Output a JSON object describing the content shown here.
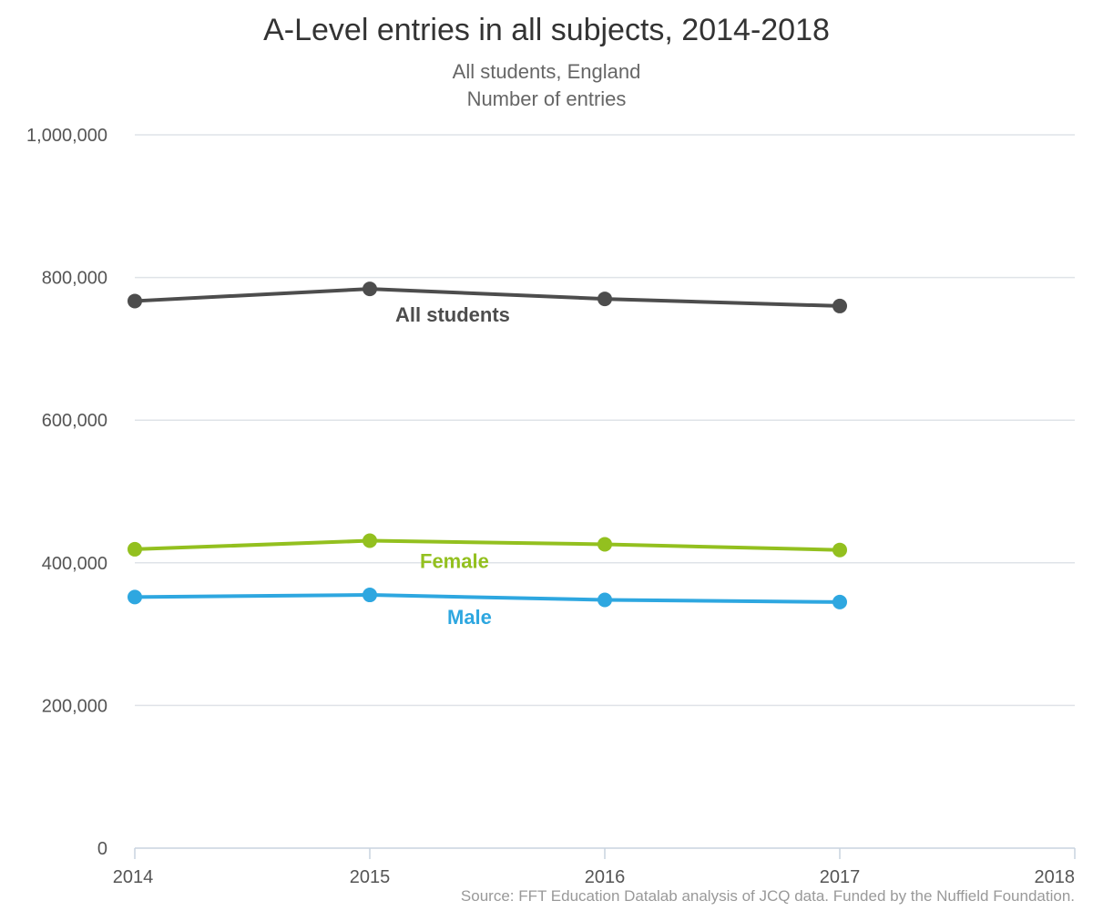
{
  "chart_data": {
    "type": "line",
    "title": "A-Level entries in all subjects, 2014-2018",
    "subtitle_lines": [
      "All students, England",
      "Number of entries"
    ],
    "source": "Source: FFT Education Datalab analysis of JCQ data. Funded by the Nuffield Foundation.",
    "x": [
      "2014",
      "2015",
      "2016",
      "2017",
      "2018"
    ],
    "x_tick_labels": [
      "2014",
      "2015",
      "2016",
      "2017",
      "2018"
    ],
    "ylim": [
      0,
      1000000
    ],
    "y_tick_values": [
      0,
      200000,
      400000,
      600000,
      800000,
      1000000
    ],
    "y_tick_labels": [
      "0",
      "200,000",
      "400,000",
      "600,000",
      "800,000",
      "1,000,000"
    ],
    "grid": true,
    "series": [
      {
        "name": "All students",
        "color": "#4d4d4d",
        "values": [
          767000,
          784000,
          770000,
          760000,
          null
        ]
      },
      {
        "name": "Female",
        "color": "#93c01f",
        "values": [
          419000,
          431000,
          426000,
          418000,
          null
        ]
      },
      {
        "name": "Male",
        "color": "#2ea7e0",
        "values": [
          352000,
          355000,
          348000,
          345000,
          null
        ]
      }
    ]
  }
}
